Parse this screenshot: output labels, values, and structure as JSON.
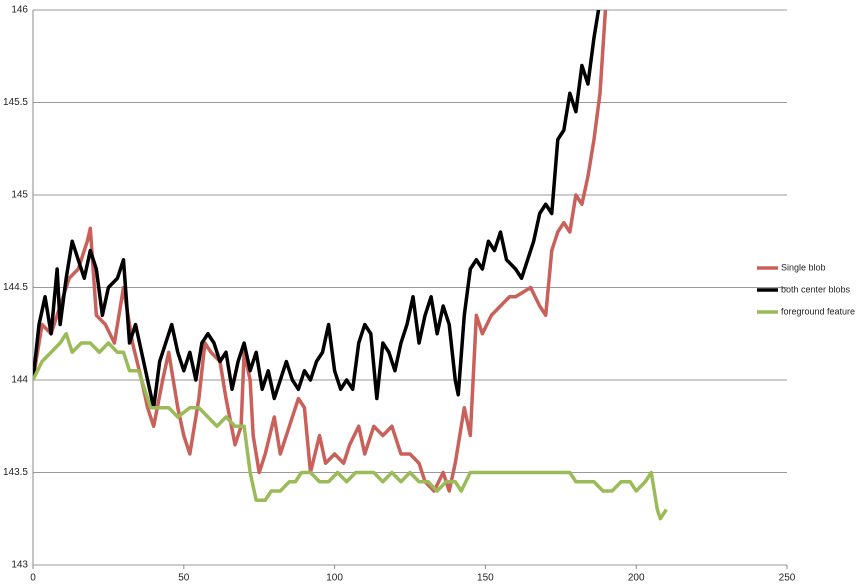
{
  "chart_data": {
    "type": "line",
    "xlim": [
      0,
      250
    ],
    "xticks": [
      0,
      50,
      100,
      150,
      200,
      250
    ],
    "ylim": [
      143,
      146
    ],
    "yticks": [
      143,
      143.5,
      144,
      144.5,
      145,
      145.5,
      146
    ],
    "grid": true,
    "legend": "right",
    "series": [
      {
        "name": "Single blob",
        "color": "#c9605a",
        "x": [
          0,
          3,
          6,
          9,
          12,
          15,
          18,
          19,
          21,
          24,
          27,
          30,
          33,
          36,
          38,
          40,
          43,
          45,
          48,
          50,
          52,
          55,
          57,
          59,
          62,
          64,
          67,
          69,
          70,
          72,
          73,
          75,
          77,
          80,
          82,
          85,
          88,
          90,
          92,
          95,
          97,
          100,
          103,
          105,
          108,
          110,
          113,
          116,
          119,
          122,
          125,
          128,
          130,
          133,
          136,
          138,
          140,
          143,
          145,
          147,
          149,
          152,
          155,
          158,
          160,
          165,
          168,
          170,
          172,
          174,
          176,
          178,
          180,
          182,
          184,
          186,
          188,
          190
        ],
        "values": [
          144.0,
          144.3,
          144.25,
          144.4,
          144.55,
          144.6,
          144.75,
          144.82,
          144.35,
          144.3,
          144.2,
          144.5,
          144.2,
          144.0,
          143.85,
          143.75,
          144.0,
          144.15,
          143.85,
          143.7,
          143.6,
          143.9,
          144.2,
          144.15,
          144.1,
          143.9,
          143.65,
          143.75,
          144.15,
          144.0,
          143.7,
          143.5,
          143.6,
          143.8,
          143.6,
          143.75,
          143.9,
          143.85,
          143.5,
          143.7,
          143.55,
          143.6,
          143.55,
          143.65,
          143.75,
          143.6,
          143.75,
          143.7,
          143.75,
          143.6,
          143.6,
          143.55,
          143.45,
          143.4,
          143.5,
          143.4,
          143.55,
          143.85,
          143.7,
          144.35,
          144.25,
          144.35,
          144.4,
          144.45,
          144.45,
          144.5,
          144.4,
          144.35,
          144.7,
          144.8,
          144.85,
          144.8,
          145.0,
          144.95,
          145.1,
          145.3,
          145.55,
          146.05
        ]
      },
      {
        "name": "both center blobs",
        "color": "#000000",
        "x": [
          0,
          2,
          4,
          6,
          8,
          9,
          11,
          13,
          15,
          17,
          19,
          21,
          23,
          25,
          28,
          30,
          32,
          34,
          36,
          38,
          40,
          42,
          44,
          46,
          48,
          50,
          52,
          54,
          56,
          58,
          60,
          62,
          64,
          66,
          68,
          70,
          72,
          74,
          76,
          78,
          80,
          82,
          84,
          86,
          88,
          90,
          92,
          94,
          96,
          98,
          100,
          102,
          104,
          106,
          108,
          110,
          112,
          114,
          116,
          118,
          120,
          122,
          124,
          126,
          128,
          130,
          132,
          134,
          136,
          138,
          140,
          141,
          143,
          145,
          147,
          149,
          151,
          153,
          155,
          157,
          160,
          162,
          164,
          166,
          168,
          170,
          172,
          174,
          176,
          178,
          180,
          182,
          184,
          186,
          188
        ],
        "values": [
          144.0,
          144.3,
          144.45,
          144.25,
          144.6,
          144.3,
          144.55,
          144.75,
          144.65,
          144.55,
          144.7,
          144.6,
          144.35,
          144.5,
          144.55,
          144.65,
          144.2,
          144.3,
          144.15,
          144.0,
          143.85,
          144.1,
          144.2,
          144.3,
          144.15,
          144.05,
          144.15,
          144.0,
          144.2,
          144.25,
          144.2,
          144.1,
          144.15,
          143.95,
          144.1,
          144.2,
          144.05,
          144.15,
          143.95,
          144.05,
          143.9,
          144.0,
          144.1,
          144.0,
          143.95,
          144.05,
          144.0,
          144.1,
          144.15,
          144.3,
          144.05,
          143.95,
          144.0,
          143.95,
          144.2,
          144.3,
          144.25,
          143.9,
          144.2,
          144.15,
          144.05,
          144.2,
          144.3,
          144.45,
          144.2,
          144.35,
          144.45,
          144.25,
          144.4,
          144.3,
          144.0,
          143.92,
          144.35,
          144.6,
          144.65,
          144.6,
          144.75,
          144.7,
          144.8,
          144.65,
          144.6,
          144.55,
          144.65,
          144.75,
          144.9,
          144.95,
          144.9,
          145.3,
          145.35,
          145.55,
          145.45,
          145.7,
          145.6,
          145.85,
          146.05
        ]
      },
      {
        "name": "foreground feature",
        "color": "#9bbb59",
        "x": [
          0,
          3,
          6,
          9,
          11,
          13,
          16,
          19,
          22,
          25,
          28,
          30,
          32,
          35,
          37,
          39,
          42,
          45,
          48,
          52,
          55,
          58,
          61,
          64,
          67,
          70,
          72,
          74,
          77,
          79,
          82,
          85,
          87,
          89,
          92,
          95,
          98,
          101,
          104,
          107,
          110,
          113,
          116,
          119,
          122,
          125,
          128,
          131,
          134,
          137,
          140,
          142,
          145,
          148,
          152,
          156,
          160,
          165,
          170,
          175,
          178,
          180,
          183,
          186,
          189,
          192,
          195,
          198,
          200,
          203,
          205,
          207,
          208,
          210
        ],
        "values": [
          144.0,
          144.1,
          144.15,
          144.2,
          144.25,
          144.15,
          144.2,
          144.2,
          144.15,
          144.2,
          144.15,
          144.15,
          144.05,
          144.05,
          143.95,
          143.85,
          143.85,
          143.85,
          143.8,
          143.85,
          143.85,
          143.8,
          143.75,
          143.8,
          143.75,
          143.75,
          143.5,
          143.35,
          143.35,
          143.4,
          143.4,
          143.45,
          143.45,
          143.5,
          143.5,
          143.45,
          143.45,
          143.5,
          143.45,
          143.5,
          143.5,
          143.5,
          143.45,
          143.5,
          143.45,
          143.5,
          143.45,
          143.45,
          143.4,
          143.45,
          143.45,
          143.4,
          143.5,
          143.5,
          143.5,
          143.5,
          143.5,
          143.5,
          143.5,
          143.5,
          143.5,
          143.45,
          143.45,
          143.45,
          143.4,
          143.4,
          143.45,
          143.45,
          143.4,
          143.45,
          143.5,
          143.3,
          143.25,
          143.3
        ]
      }
    ]
  }
}
